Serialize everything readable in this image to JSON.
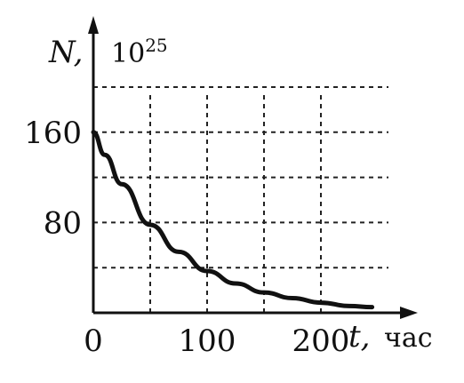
{
  "chart_data": {
    "type": "line",
    "x_label_var": "t,",
    "x_label_unit": "час",
    "y_label_var": "N,",
    "y_label_unit": "10",
    "y_label_exp": "25",
    "xlim": [
      0,
      250
    ],
    "ylim": [
      0,
      200
    ],
    "x_ticks": [
      {
        "value": 0,
        "label": "0"
      },
      {
        "value": 100,
        "label": "100"
      },
      {
        "value": 200,
        "label": "200"
      }
    ],
    "y_ticks": [
      {
        "value": 80,
        "label": "80"
      },
      {
        "value": 160,
        "label": "160"
      }
    ],
    "x_grid": [
      50,
      100,
      150,
      200
    ],
    "y_grid": [
      40,
      80,
      120,
      160,
      200
    ],
    "grid": true,
    "series": [
      {
        "x": [
          0,
          10,
          25,
          50,
          75,
          100,
          125,
          150,
          175,
          200,
          225,
          245
        ],
        "y": [
          160,
          140,
          114,
          78,
          54,
          37,
          26,
          18,
          13,
          9,
          6,
          5
        ]
      }
    ]
  }
}
